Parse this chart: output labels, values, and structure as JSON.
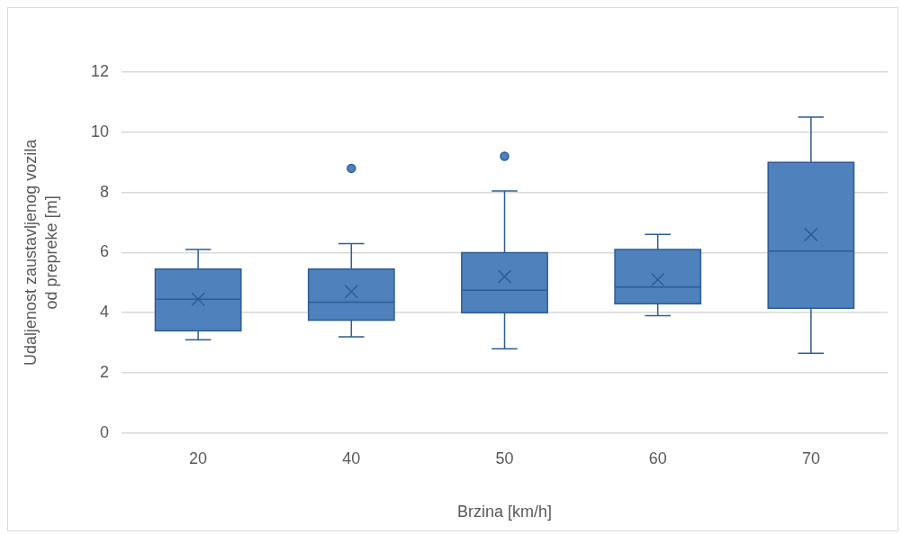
{
  "chart_data": {
    "type": "box",
    "xlabel": "Brzina [km/h]",
    "ylabel": "Udaljenost zaustavljenog vozila od prepreke [m]",
    "categories": [
      "20",
      "40",
      "50",
      "60",
      "70"
    ],
    "color": "#4f81bd",
    "boxes": [
      {
        "low": 3.1,
        "q1": 3.4,
        "median": 4.45,
        "q3": 5.45,
        "high": 6.1,
        "mean": 4.45
      },
      {
        "low": 3.2,
        "q1": 3.75,
        "median": 4.35,
        "q3": 5.45,
        "high": 6.3,
        "mean": 4.7,
        "outliers": [
          8.8
        ]
      },
      {
        "low": 2.8,
        "q1": 4.0,
        "median": 4.75,
        "q3": 6.0,
        "high": 8.05,
        "mean": 5.2,
        "outliers": [
          9.2
        ]
      },
      {
        "low": 3.9,
        "q1": 4.3,
        "median": 4.85,
        "q3": 6.1,
        "high": 6.6,
        "mean": 5.1
      },
      {
        "low": 2.65,
        "q1": 4.15,
        "median": 6.05,
        "q3": 9.0,
        "high": 10.5,
        "mean": 6.6
      }
    ],
    "ylim": [
      0,
      12
    ],
    "yticks": [
      0,
      2,
      4,
      6,
      8,
      10,
      12
    ],
    "grid": "y",
    "legend": false
  }
}
